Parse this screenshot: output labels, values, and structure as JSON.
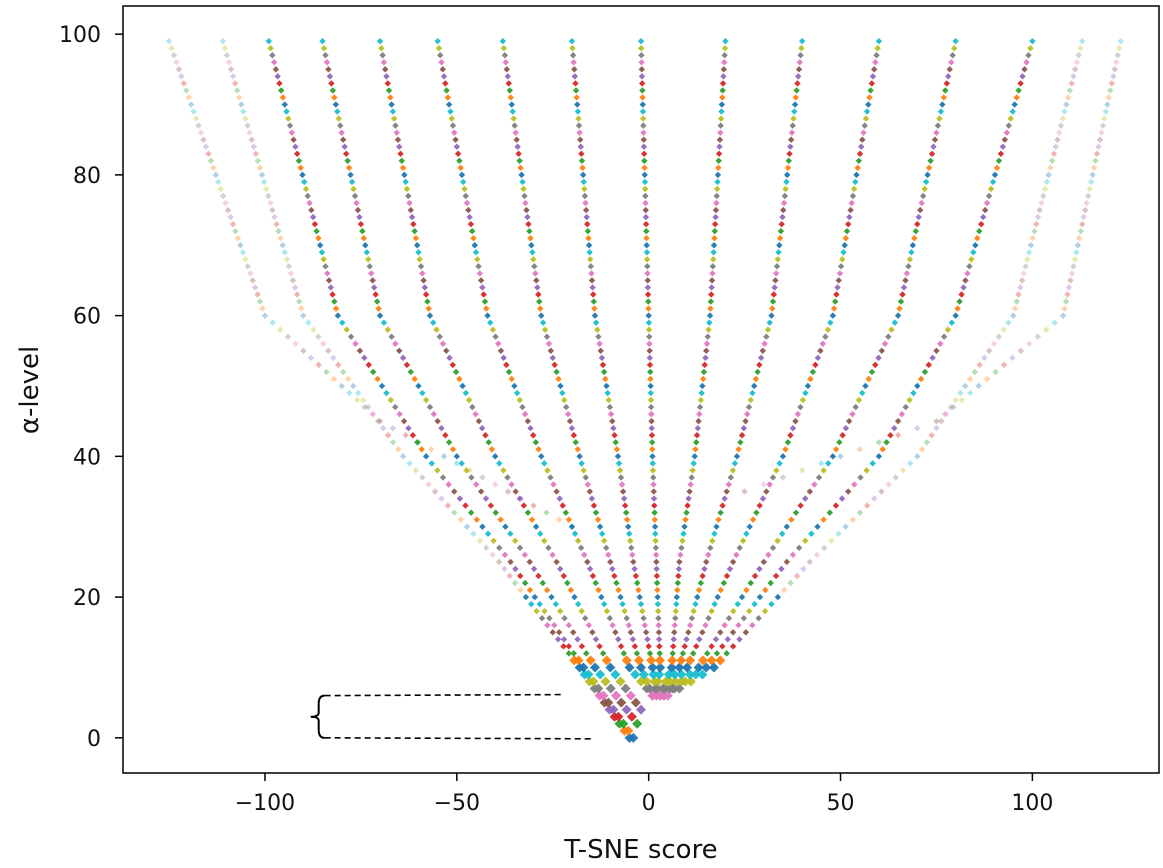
{
  "chart_data": {
    "type": "scatter",
    "title": "",
    "xlabel": "T-SNE score",
    "ylabel": "α-level",
    "xlim": [
      -137,
      133
    ],
    "ylim": [
      -5,
      104
    ],
    "xticks": [
      -100,
      -50,
      0,
      50,
      100
    ],
    "yticks": [
      0,
      20,
      40,
      60,
      80,
      100
    ],
    "xtick_labels": [
      "−100",
      "−50",
      "0",
      "50",
      "100"
    ],
    "ytick_labels": [
      "0",
      "20",
      "40",
      "60",
      "80",
      "100"
    ],
    "grid": false,
    "legend": "none",
    "alpha_levels": {
      "start": 0,
      "end": 99,
      "step": 1
    },
    "marker": "diamond",
    "palette": [
      "#1f77b4",
      "#ff7f0e",
      "#2ca02c",
      "#d62728",
      "#9467bd",
      "#8c564b",
      "#e377c2",
      "#7f7f7f",
      "#bcbd22",
      "#17becf"
    ],
    "branches": [
      {
        "name_note": "",
        "points": [
          [
            0,
            -5
          ],
          [
            10,
            -18
          ],
          [
            25,
            -39
          ],
          [
            40,
            -64
          ],
          [
            60,
            -90
          ],
          [
            99,
            -111
          ]
        ]
      },
      {
        "points": [
          [
            0,
            -4
          ],
          [
            10,
            -17
          ],
          [
            25,
            -36
          ],
          [
            40,
            -58
          ],
          [
            60,
            -81
          ],
          [
            99,
            -99
          ]
        ]
      },
      {
        "points": [
          [
            2,
            -3
          ],
          [
            10,
            -14
          ],
          [
            25,
            -31
          ],
          [
            40,
            -50
          ],
          [
            60,
            -70
          ],
          [
            99,
            -85
          ]
        ]
      },
      {
        "points": [
          [
            4,
            -2
          ],
          [
            10,
            -10
          ],
          [
            25,
            -24
          ],
          [
            40,
            -40
          ],
          [
            60,
            -57
          ],
          [
            99,
            -70
          ]
        ]
      },
      {
        "points": [
          [
            6,
            1
          ],
          [
            10,
            -5
          ],
          [
            25,
            -16
          ],
          [
            40,
            -28
          ],
          [
            60,
            -42
          ],
          [
            99,
            -55
          ]
        ]
      },
      {
        "points": [
          [
            6,
            1
          ],
          [
            10,
            -2
          ],
          [
            25,
            -10
          ],
          [
            40,
            -18
          ],
          [
            60,
            -28
          ],
          [
            99,
            -38
          ]
        ]
      },
      {
        "points": [
          [
            6,
            2
          ],
          [
            10,
            1
          ],
          [
            25,
            -4
          ],
          [
            40,
            -8
          ],
          [
            60,
            -14
          ],
          [
            99,
            -20
          ]
        ]
      },
      {
        "points": [
          [
            6,
            2
          ],
          [
            10,
            3
          ],
          [
            25,
            2
          ],
          [
            40,
            1
          ],
          [
            60,
            0
          ],
          [
            99,
            -2
          ]
        ]
      },
      {
        "points": [
          [
            6,
            3
          ],
          [
            10,
            6
          ],
          [
            25,
            8
          ],
          [
            40,
            12
          ],
          [
            60,
            16
          ],
          [
            99,
            20
          ]
        ]
      },
      {
        "points": [
          [
            6,
            3
          ],
          [
            10,
            8
          ],
          [
            25,
            15
          ],
          [
            40,
            23
          ],
          [
            60,
            32
          ],
          [
            99,
            40
          ]
        ]
      },
      {
        "points": [
          [
            6,
            4
          ],
          [
            10,
            10
          ],
          [
            25,
            22
          ],
          [
            40,
            35
          ],
          [
            60,
            48
          ],
          [
            99,
            60
          ]
        ]
      },
      {
        "points": [
          [
            6,
            4
          ],
          [
            10,
            13
          ],
          [
            25,
            30
          ],
          [
            40,
            48
          ],
          [
            60,
            65
          ],
          [
            99,
            80
          ]
        ]
      },
      {
        "points": [
          [
            6,
            4
          ],
          [
            10,
            15
          ],
          [
            25,
            36
          ],
          [
            40,
            60
          ],
          [
            60,
            80
          ],
          [
            99,
            100
          ]
        ]
      },
      {
        "points": [
          [
            6,
            5
          ],
          [
            10,
            17
          ],
          [
            25,
            42
          ],
          [
            40,
            70
          ],
          [
            60,
            95
          ],
          [
            99,
            113
          ]
        ]
      },
      {
        "points": [
          [
            30,
            -20
          ],
          [
            45,
            -70
          ],
          [
            60,
            -100
          ],
          [
            99,
            -125
          ]
        ]
      },
      {
        "points": [
          [
            35,
            25
          ],
          [
            45,
            75
          ],
          [
            60,
            108
          ],
          [
            99,
            123
          ]
        ]
      }
    ],
    "bracket_range": [
      0,
      6
    ]
  }
}
